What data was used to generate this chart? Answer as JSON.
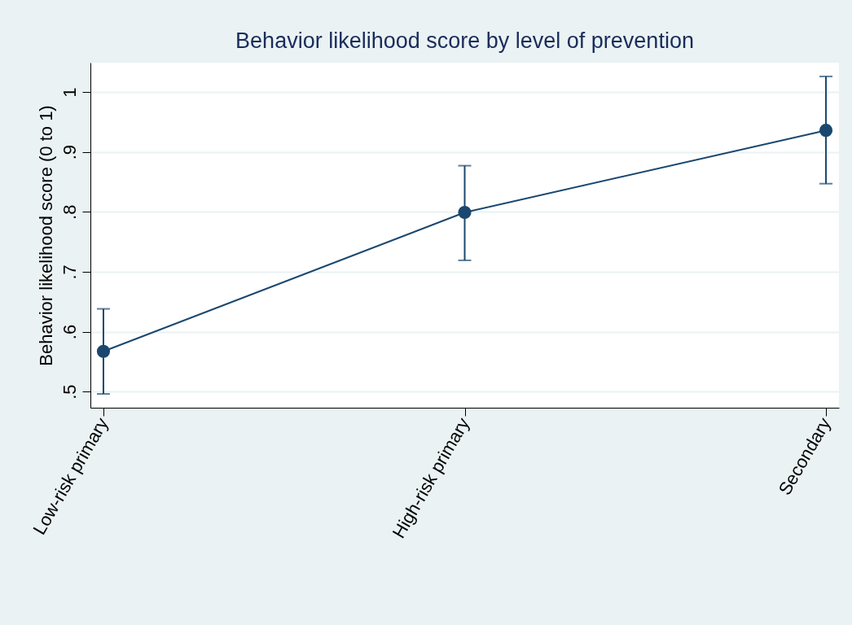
{
  "chart_data": {
    "type": "line",
    "title": "Behavior likelihood score by level of prevention",
    "ylabel": "Behavior likelihood score (0 to 1)",
    "categories": [
      "Low-risk primary",
      "High-risk primary",
      "Secondary"
    ],
    "series": [
      {
        "color": "#1a476f",
        "values": [
          0.567,
          0.799,
          0.936
        ],
        "errors": [
          [
            0.496,
            0.638
          ],
          [
            0.719,
            0.877
          ],
          [
            0.847,
            1.026
          ]
        ]
      }
    ],
    "ylim": [
      0.473,
      1.049
    ],
    "yticks": [
      {
        "value": 0.5,
        "label": ".5"
      },
      {
        "value": 0.6,
        "label": ".6"
      },
      {
        "value": 0.7,
        "label": ".7"
      },
      {
        "value": 0.8,
        "label": ".8"
      },
      {
        "value": 0.9,
        "label": ".9"
      },
      1
    ],
    "grid": "y",
    "marker": "circle",
    "legend": false
  }
}
